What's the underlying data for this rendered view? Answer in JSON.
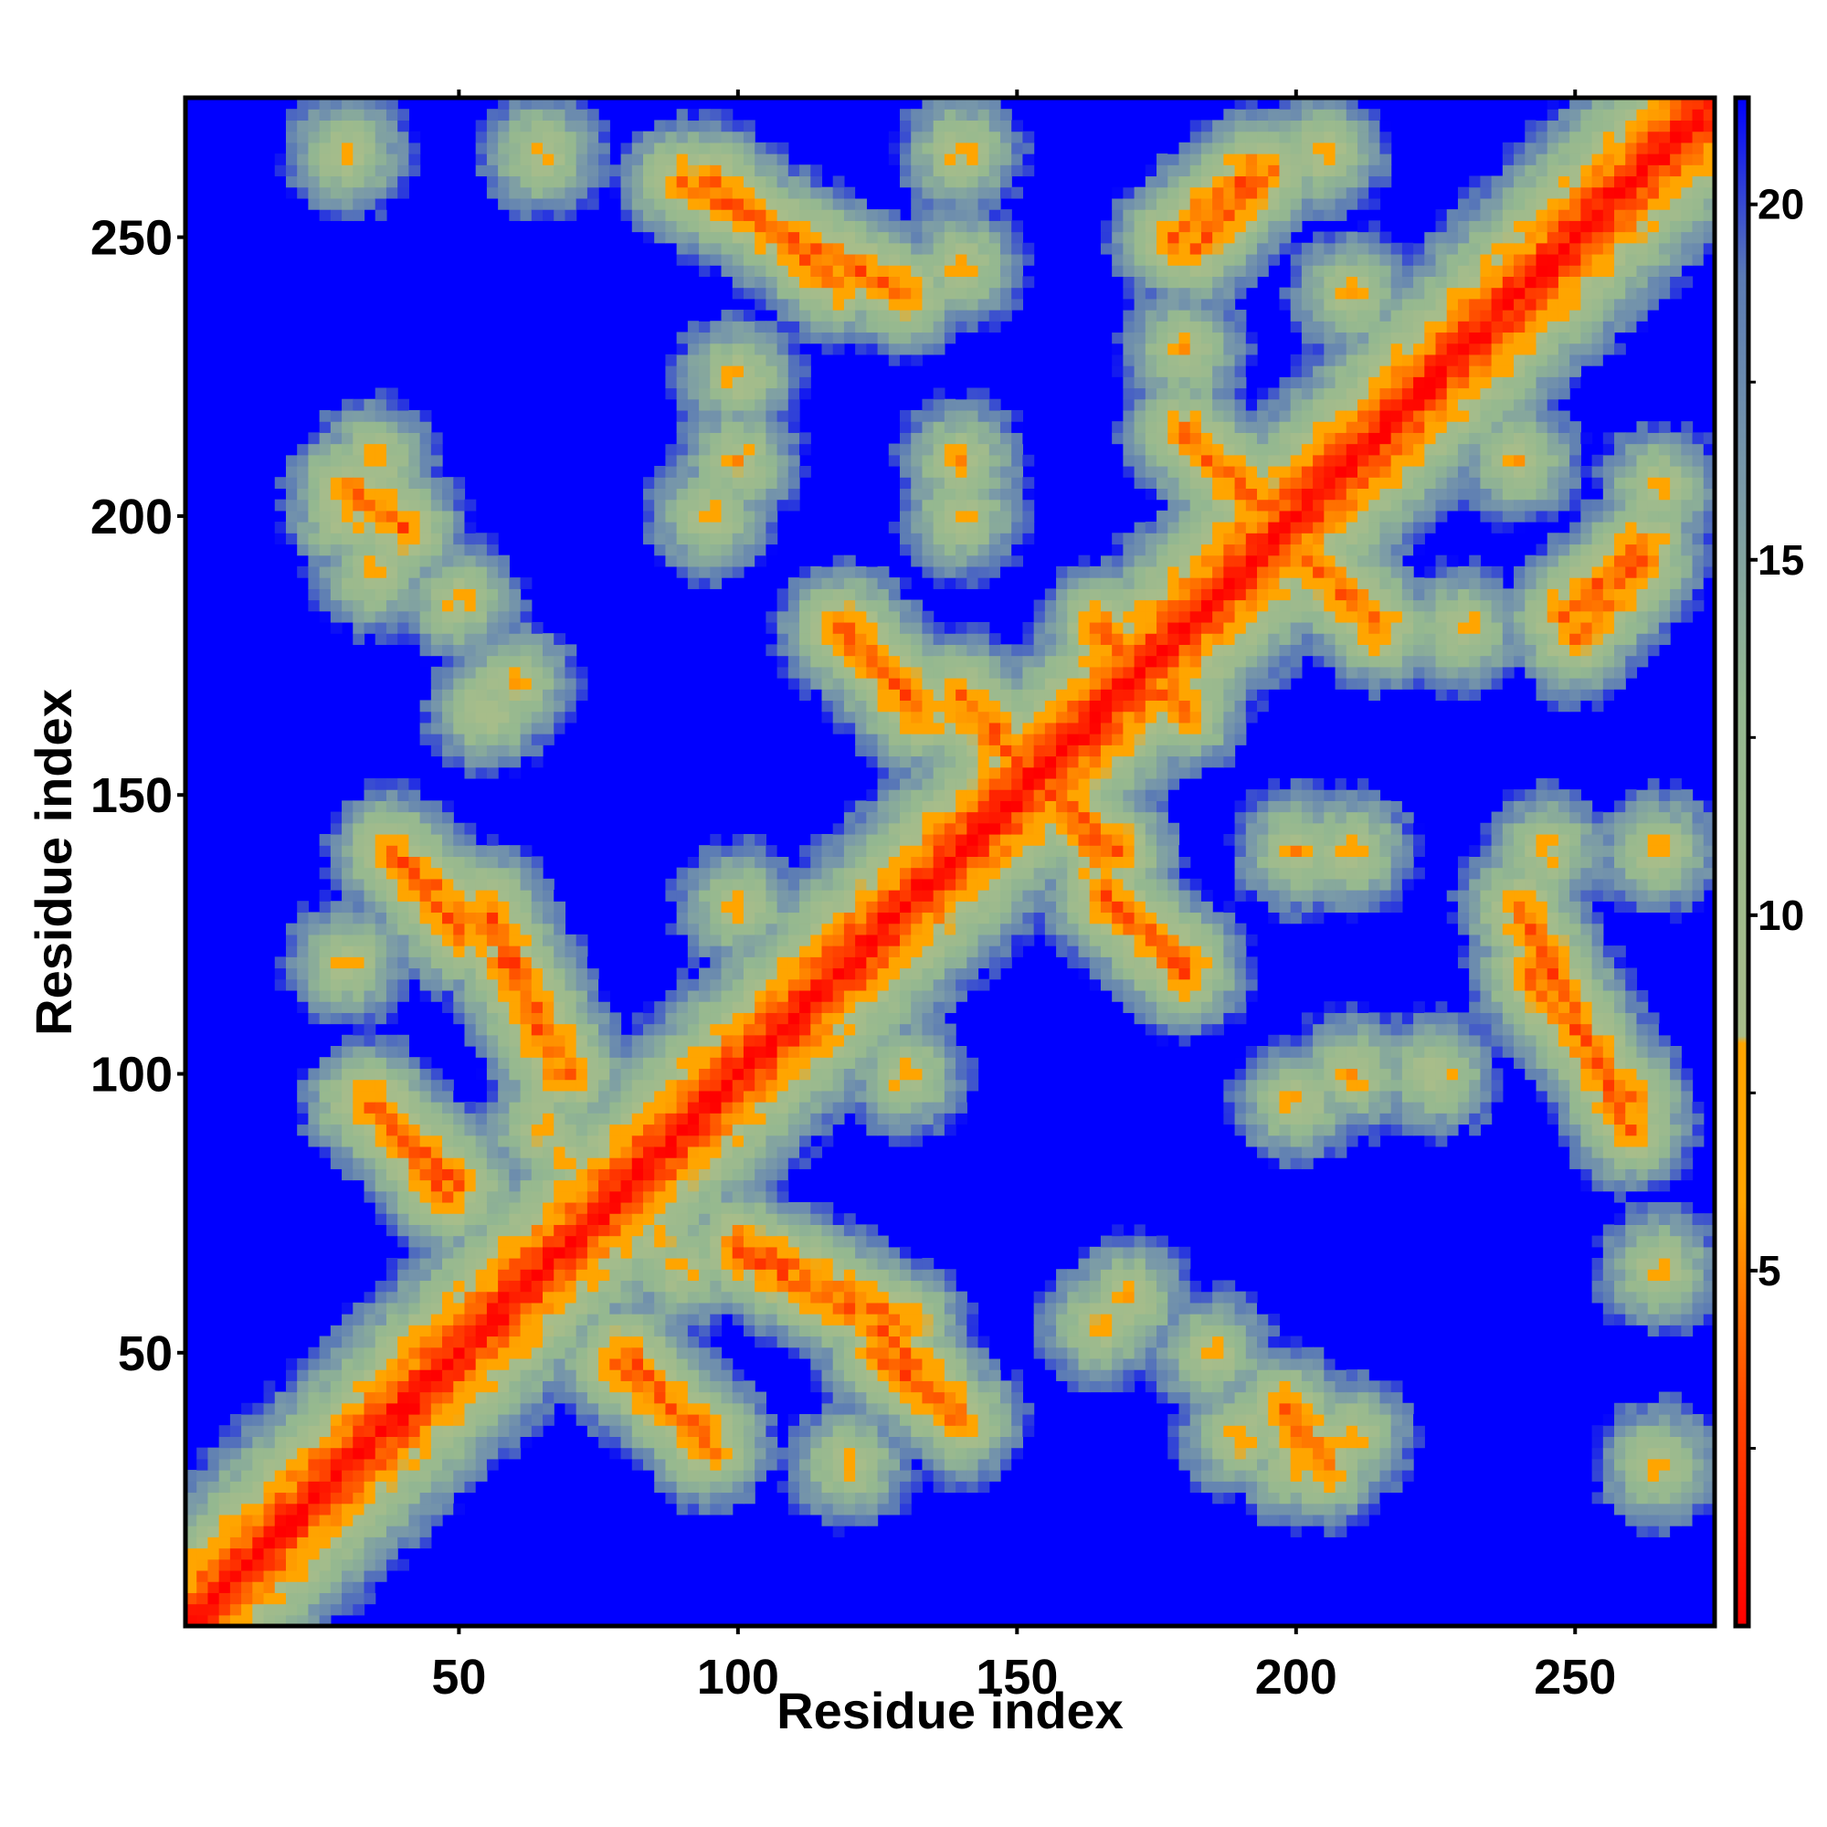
{
  "chart_data": {
    "type": "heatmap",
    "title": "",
    "xlabel": "Residue index",
    "ylabel": "Residue index",
    "xlim": [
      1,
      275
    ],
    "ylim": [
      1,
      275
    ],
    "xticks": [
      50,
      100,
      150,
      200,
      250
    ],
    "yticks": [
      50,
      100,
      150,
      200,
      250
    ],
    "colorbar": {
      "ticks": [
        5,
        10,
        15,
        20
      ],
      "range": [
        0,
        21.5
      ],
      "colors": [
        {
          "value": 0,
          "color": "#ff0000"
        },
        {
          "value": 3,
          "color": "#ff4500"
        },
        {
          "value": 6,
          "color": "#ffa500"
        },
        {
          "value": 8.2,
          "color": "#ffa500"
        },
        {
          "value": 8.3,
          "color": "#a8bd8a"
        },
        {
          "value": 13,
          "color": "#94b890"
        },
        {
          "value": 16,
          "color": "#7a9aa8"
        },
        {
          "value": 19,
          "color": "#5b7bb5"
        },
        {
          "value": 21.5,
          "color": "#0000ff"
        }
      ]
    },
    "background_color": "#0000ff",
    "diagonal": true,
    "contact_bands": [
      {
        "type": "helix",
        "start": 45,
        "end": 90,
        "direction": "anti"
      },
      {
        "type": "anti",
        "x": [
          33,
          50
        ],
        "y": [
          95,
          80
        ]
      },
      {
        "type": "anti",
        "x": [
          78,
          95
        ],
        "y": [
          48,
          35
        ]
      },
      {
        "type": "anti",
        "x": [
          100,
          130
        ],
        "y": [
          70,
          55
        ]
      },
      {
        "type": "anti",
        "x": [
          125,
          140
        ],
        "y": [
          50,
          38
        ]
      },
      {
        "type": "anti",
        "x": [
          40,
          55
        ],
        "y": [
          138,
          125
        ]
      },
      {
        "type": "anti",
        "x": [
          58,
          68
        ],
        "y": [
          120,
          100
        ]
      },
      {
        "type": "anti",
        "x": [
          140,
          165
        ],
        "y": [
          168,
          140
        ]
      },
      {
        "type": "anti",
        "x": [
          165,
          180
        ],
        "y": [
          180,
          165
        ]
      },
      {
        "type": "anti",
        "x": [
          180,
          215
        ],
        "y": [
          215,
          180
        ]
      },
      {
        "type": "anti",
        "x": [
          90,
          130
        ],
        "y": [
          260,
          240
        ]
      },
      {
        "type": "parallel",
        "x": [
          182,
          195
        ],
        "y": [
          248,
          262
        ]
      },
      {
        "type": "parallel",
        "x": [
          250,
          262
        ],
        "y": [
          178,
          192
        ]
      },
      {
        "type": "anti",
        "x": [
          242,
          260
        ],
        "y": [
          118,
          95
        ]
      },
      {
        "type": "anti",
        "x": [
          198,
          205
        ],
        "y": [
          40,
          30
        ]
      },
      {
        "type": "anti",
        "x": [
          165,
          180
        ],
        "y": [
          132,
          120
        ]
      },
      {
        "type": "anti",
        "x": [
          118,
          133
        ],
        "y": [
          180,
          165
        ]
      }
    ]
  }
}
